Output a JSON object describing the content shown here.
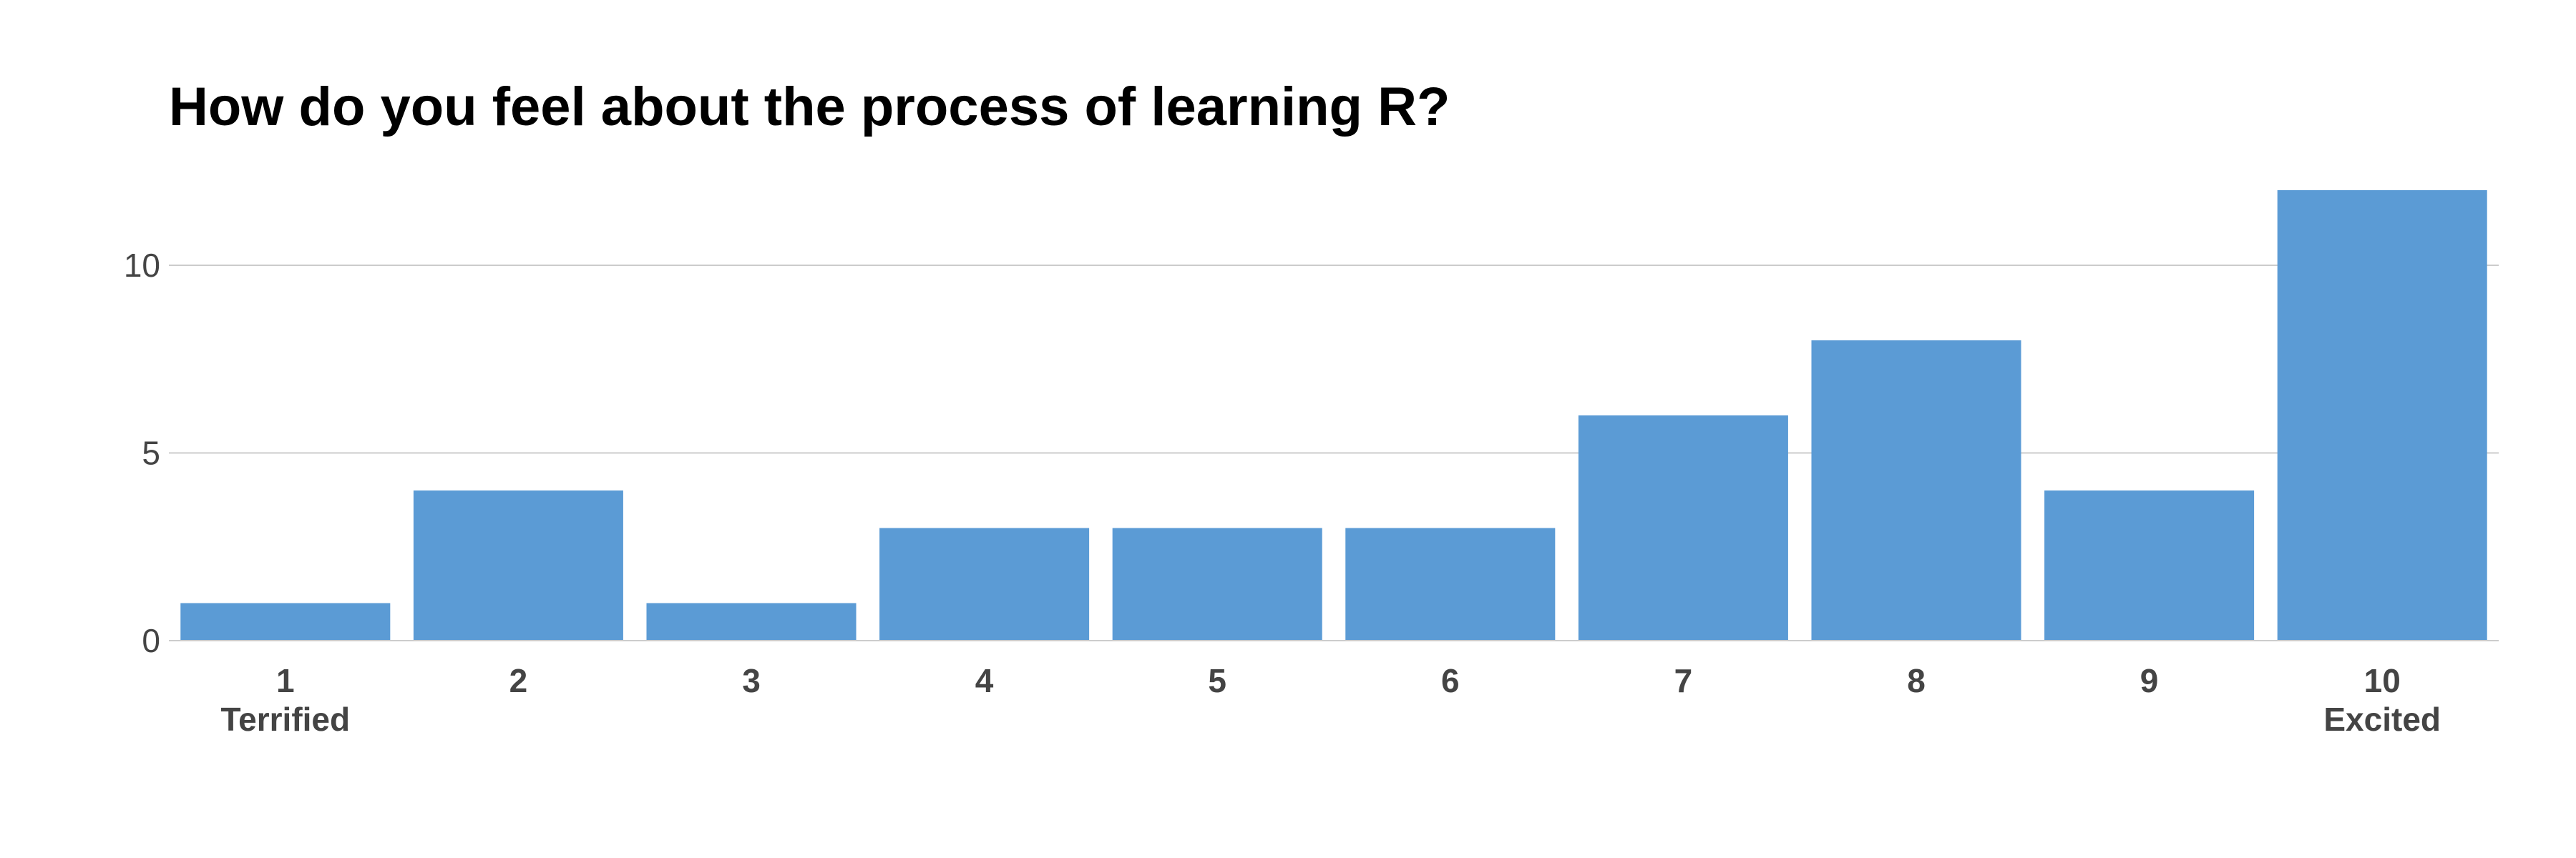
{
  "chart_data": {
    "type": "bar",
    "title": "How do you feel about the process of learning R?",
    "xlabel": "",
    "ylabel": "",
    "categories": [
      "1",
      "2",
      "3",
      "4",
      "5",
      "6",
      "7",
      "8",
      "9",
      "10"
    ],
    "category_sublabels": [
      "Terrified",
      "",
      "",
      "",
      "",
      "",
      "",
      "",
      "",
      "Excited"
    ],
    "values": [
      1,
      4,
      1,
      3,
      3,
      3,
      6,
      8,
      4,
      12
    ],
    "ylim": [
      0,
      12
    ],
    "yticks": [
      0,
      5,
      10
    ],
    "grid": true,
    "legend": "none",
    "bar_color": "#5b9bd5",
    "grid_color": "#cccccc"
  }
}
